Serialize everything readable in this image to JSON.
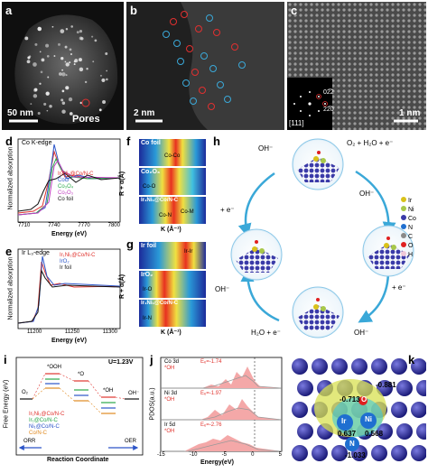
{
  "figure": {
    "a": {
      "label": "a",
      "scale": "50 nm",
      "annotation": "Pores"
    },
    "b": {
      "label": "b",
      "scale": "2 nm"
    },
    "c": {
      "label": "c",
      "scale": "1 nm",
      "inset_zone": "[111]",
      "spots": [
        "02̅2",
        "22̅0"
      ]
    },
    "d": {
      "label": "d",
      "edge": "Co K-edge",
      "ylabel": "Normalized absorption",
      "xlabel": "Energy (eV)",
      "ticks": [
        "7710",
        "7740",
        "7770",
        "7800"
      ],
      "legend": [
        {
          "name": "Ir₁Ni₁@Co/N-C",
          "color": "#e0342f"
        },
        {
          "name": "CoO",
          "color": "#2c55c8"
        },
        {
          "name": "Co₃O₄",
          "color": "#2aa84a"
        },
        {
          "name": "Co₂O₃",
          "color": "#c040c0"
        },
        {
          "name": "Co foil",
          "color": "#111111"
        }
      ]
    },
    "e": {
      "label": "e",
      "edge": "Ir L₃-edge",
      "ylabel": "Normalized absorption",
      "xlabel": "Energy (eV)",
      "ticks": [
        "11200",
        "11250",
        "11300"
      ],
      "legend": [
        {
          "name": "Ir₁Ni₁@Co/N-C",
          "color": "#e0342f"
        },
        {
          "name": "IrO₂",
          "color": "#2c55c8"
        },
        {
          "name": "Ir foil",
          "color": "#111111"
        }
      ]
    },
    "f": {
      "label": "f",
      "ylabel": "R + α(Å)",
      "xlabel": "K (Å⁻¹)",
      "maps": [
        {
          "title": "Co foil",
          "note": "Co-Co"
        },
        {
          "title": "Co₂O₃",
          "note": "Co-O"
        },
        {
          "title": "Ir₁Ni₁@Co/N-C",
          "note": "Co-N"
        }
      ],
      "extra_note": "Co-M"
    },
    "g": {
      "label": "g",
      "ylabel": "R + α(Å)",
      "xlabel": "K (Å⁻¹)",
      "maps": [
        {
          "title": "Ir foil",
          "note": "Ir-Ir"
        },
        {
          "title": "IrO₂",
          "note": "Ir-O"
        },
        {
          "title": "Ir₁Ni₁@Co/N-C",
          "note": "Ir-N"
        }
      ]
    },
    "h": {
      "label": "h",
      "reactions": [
        "OH⁻",
        "O₂ + H₂O + e⁻",
        "+ e⁻",
        "OH⁻",
        "OH⁻",
        "+ e⁻",
        "H₂O + e⁻",
        "OH⁻"
      ],
      "legend": [
        {
          "name": "Ir",
          "color": "#d9c21a"
        },
        {
          "name": "Ni",
          "color": "#a8c84a"
        },
        {
          "name": "Co",
          "color": "#3a3aa8"
        },
        {
          "name": "N",
          "color": "#1f6fd0"
        },
        {
          "name": "C",
          "color": "#8a8a8a"
        },
        {
          "name": "O",
          "color": "#e02020"
        },
        {
          "name": "H",
          "color": "#f0c8d8"
        }
      ]
    },
    "i": {
      "label": "i",
      "ylabel": "Free Energy (eV)",
      "xlabel": "Reaction Coordinate",
      "potential": "U=1.23V",
      "states": [
        "O₂",
        "*OOH",
        "*O",
        "*OH",
        "OH⁻"
      ],
      "legend": [
        {
          "name": "Ir₁Ni₁@Co/N-C",
          "color": "#e0342f"
        },
        {
          "name": "Ir₁@Co/N-C",
          "color": "#2aa84a"
        },
        {
          "name": "Ni₁@Co/N-C",
          "color": "#2c55c8"
        },
        {
          "name": "Co/N-C",
          "color": "#e08a20"
        }
      ],
      "arrows": [
        "ORR",
        "OER"
      ]
    },
    "j": {
      "label": "j",
      "ylabel": "PDOS(a.u.)",
      "xlabel": "Energy(eV)",
      "ticks": [
        "-15",
        "-10",
        "-5",
        "0",
        "5"
      ],
      "subpanels": [
        {
          "metal": "Co 3d",
          "ads": "*OH",
          "ed": "Eₑ=-1.74"
        },
        {
          "metal": "Ni 3d",
          "ads": "*OH",
          "ed": "Eₑ=-1.97"
        },
        {
          "metal": "Ir 5d",
          "ads": "*OH",
          "ed": "Eₑ=-2.76"
        }
      ]
    },
    "k": {
      "label": "k",
      "atoms": [
        "O",
        "Ir",
        "Ni",
        "N"
      ],
      "charges": [
        "-0.713",
        "-0.881",
        "0.637",
        "0.568",
        "-1.033"
      ]
    }
  }
}
